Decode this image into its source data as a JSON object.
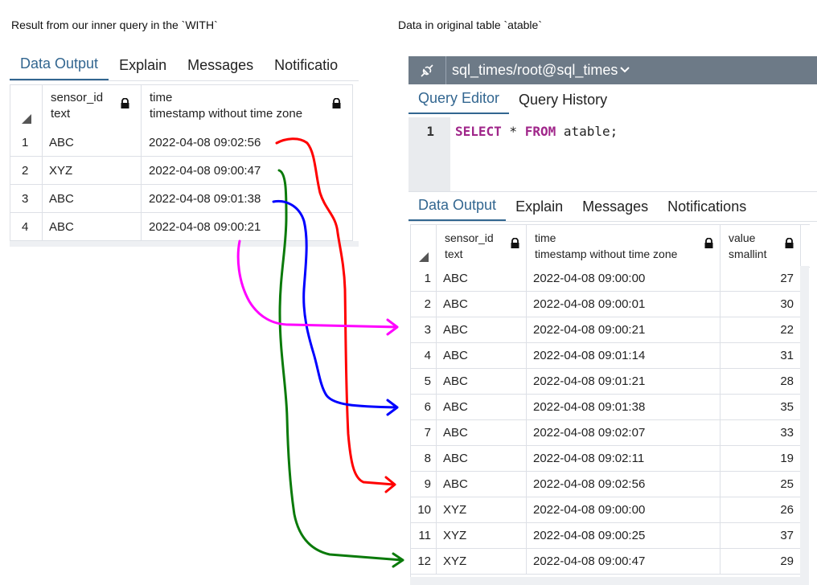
{
  "captions": {
    "left": "Result from our inner query in the `WITH`",
    "right": "Data in original table `atable`"
  },
  "left_panel": {
    "tabs": [
      "Data Output",
      "Explain",
      "Messages",
      "Notificatio"
    ],
    "columns": [
      {
        "name": "sensor_id",
        "type": "text"
      },
      {
        "name": "time",
        "type": "timestamp without time zone"
      }
    ],
    "rows": [
      {
        "n": "1",
        "sensor_id": "ABC",
        "time": "2022-04-08 09:02:56"
      },
      {
        "n": "2",
        "sensor_id": "XYZ",
        "time": "2022-04-08 09:00:47"
      },
      {
        "n": "3",
        "sensor_id": "ABC",
        "time": "2022-04-08 09:01:38"
      },
      {
        "n": "4",
        "sensor_id": "ABC",
        "time": "2022-04-08 09:00:21"
      }
    ]
  },
  "right_panel": {
    "connection": "sql_times/root@sql_times",
    "editor_tabs": [
      "Query Editor",
      "Query History"
    ],
    "line_number": "1",
    "query": {
      "kw1": "SELECT",
      "star": " * ",
      "kw2": "FROM",
      "rest": " atable;"
    },
    "tabs": [
      "Data Output",
      "Explain",
      "Messages",
      "Notifications"
    ],
    "columns": [
      {
        "name": "sensor_id",
        "type": "text"
      },
      {
        "name": "time",
        "type": "timestamp without time zone"
      },
      {
        "name": "value",
        "type": "smallint"
      }
    ],
    "rows": [
      {
        "n": "1",
        "sensor_id": "ABC",
        "time": "2022-04-08 09:00:00",
        "value": "27"
      },
      {
        "n": "2",
        "sensor_id": "ABC",
        "time": "2022-04-08 09:00:01",
        "value": "30"
      },
      {
        "n": "3",
        "sensor_id": "ABC",
        "time": "2022-04-08 09:00:21",
        "value": "22"
      },
      {
        "n": "4",
        "sensor_id": "ABC",
        "time": "2022-04-08 09:01:14",
        "value": "31"
      },
      {
        "n": "5",
        "sensor_id": "ABC",
        "time": "2022-04-08 09:01:21",
        "value": "28"
      },
      {
        "n": "6",
        "sensor_id": "ABC",
        "time": "2022-04-08 09:01:38",
        "value": "35"
      },
      {
        "n": "7",
        "sensor_id": "ABC",
        "time": "2022-04-08 09:02:07",
        "value": "33"
      },
      {
        "n": "8",
        "sensor_id": "ABC",
        "time": "2022-04-08 09:02:11",
        "value": "19"
      },
      {
        "n": "9",
        "sensor_id": "ABC",
        "time": "2022-04-08 09:02:56",
        "value": "25"
      },
      {
        "n": "10",
        "sensor_id": "XYZ",
        "time": "2022-04-08 09:00:00",
        "value": "26"
      },
      {
        "n": "11",
        "sensor_id": "XYZ",
        "time": "2022-04-08 09:00:25",
        "value": "37"
      },
      {
        "n": "12",
        "sensor_id": "XYZ",
        "time": "2022-04-08 09:00:47",
        "value": "29"
      }
    ]
  },
  "arrow_colors": {
    "red": "#ff0000",
    "green": "#0a7a0a",
    "blue": "#0000ff",
    "magenta": "#ff00ff"
  },
  "icons": {
    "lock": "lock-icon",
    "connection": "connection-icon",
    "dropdown": "chevron-down-icon",
    "sort": "sort-corner-icon"
  }
}
